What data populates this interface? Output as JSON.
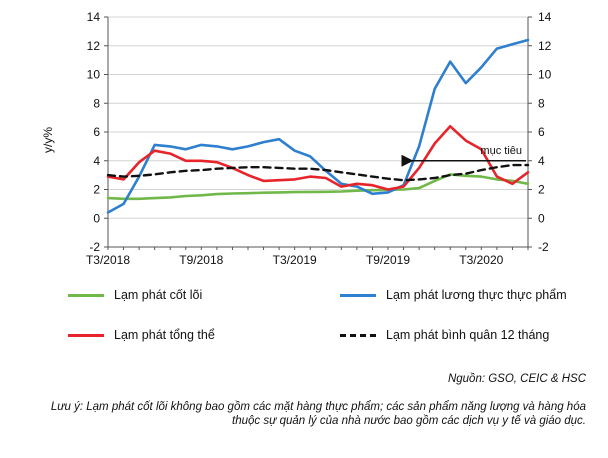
{
  "chart_data": {
    "type": "line",
    "ylabel": "y/y%",
    "ylim": [
      -2,
      14
    ],
    "yticks": [
      "-2",
      "0",
      "2",
      "4",
      "6",
      "8",
      "10",
      "12",
      "14"
    ],
    "yticks_right": [
      "-2",
      "0",
      "2",
      "4",
      "6",
      "8",
      "10",
      "12",
      "14"
    ],
    "x_tick_labels": [
      "T3/2018",
      "T9/2018",
      "T3/2019",
      "T9/2019",
      "T3/2020"
    ],
    "x": [
      "T3/2018",
      "T4/2018",
      "T5/2018",
      "T6/2018",
      "T7/2018",
      "T8/2018",
      "T9/2018",
      "T10/2018",
      "T11/2018",
      "T12/2018",
      "T1/2019",
      "T2/2019",
      "T3/2019",
      "T4/2019",
      "T5/2019",
      "T6/2019",
      "T7/2019",
      "T8/2019",
      "T9/2019",
      "T10/2019",
      "T11/2019",
      "T12/2019",
      "T1/2020",
      "T2/2020",
      "T3/2020",
      "T4/2020",
      "T5/2020",
      "T6/2020"
    ],
    "series": [
      {
        "name": "Lạm phát cốt lõi",
        "color": "#70b84a",
        "style": "solid",
        "values": [
          1.4,
          1.35,
          1.35,
          1.4,
          1.45,
          1.55,
          1.6,
          1.68,
          1.72,
          1.74,
          1.78,
          1.8,
          1.82,
          1.83,
          1.84,
          1.86,
          1.92,
          1.95,
          1.98,
          2.0,
          2.1,
          2.6,
          3.05,
          2.95,
          2.9,
          2.7,
          2.6,
          2.4
        ]
      },
      {
        "name": "Lạm phát lương thực thực phẩm",
        "color": "#2e7fcf",
        "style": "solid",
        "values": [
          0.4,
          1.0,
          2.9,
          5.1,
          5.0,
          4.8,
          5.1,
          5.0,
          4.8,
          5.0,
          5.3,
          5.5,
          4.7,
          4.3,
          3.3,
          2.4,
          2.2,
          1.7,
          1.8,
          2.3,
          5.0,
          9.0,
          10.9,
          9.4,
          10.5,
          11.8,
          12.1,
          12.4
        ]
      },
      {
        "name": "Lạm phát tổng thể",
        "color": "#e8242b",
        "style": "solid",
        "values": [
          2.9,
          2.7,
          3.9,
          4.7,
          4.5,
          4.0,
          4.0,
          3.9,
          3.5,
          3.0,
          2.6,
          2.65,
          2.7,
          2.9,
          2.8,
          2.2,
          2.4,
          2.3,
          2.0,
          2.2,
          3.5,
          5.2,
          6.4,
          5.4,
          4.8,
          2.9,
          2.4,
          3.2
        ]
      },
      {
        "name": "Lạm phát bình quân 12 tháng",
        "color": "#111111",
        "style": "dashed",
        "values": [
          3.0,
          2.9,
          2.95,
          3.05,
          3.2,
          3.3,
          3.35,
          3.45,
          3.5,
          3.55,
          3.55,
          3.5,
          3.45,
          3.45,
          3.35,
          3.2,
          3.05,
          2.9,
          2.75,
          2.65,
          2.7,
          2.8,
          3.0,
          3.1,
          3.35,
          3.55,
          3.7,
          3.7
        ]
      }
    ],
    "annotations": [
      {
        "text": "mục tiêu",
        "value": 4
      }
    ],
    "grid": true,
    "legend": "bottom"
  },
  "source_text": "Nguồn: GSO, CEIC & HSC",
  "note_text": "Lưu ý: Lạm phát cốt lõi không bao gồm các mặt hàng thực phẩm; các sản phẩm năng lượng và hàng hóa thuộc sự quản lý của nhà nước bao gồm các dịch vụ y tế và giáo dục."
}
